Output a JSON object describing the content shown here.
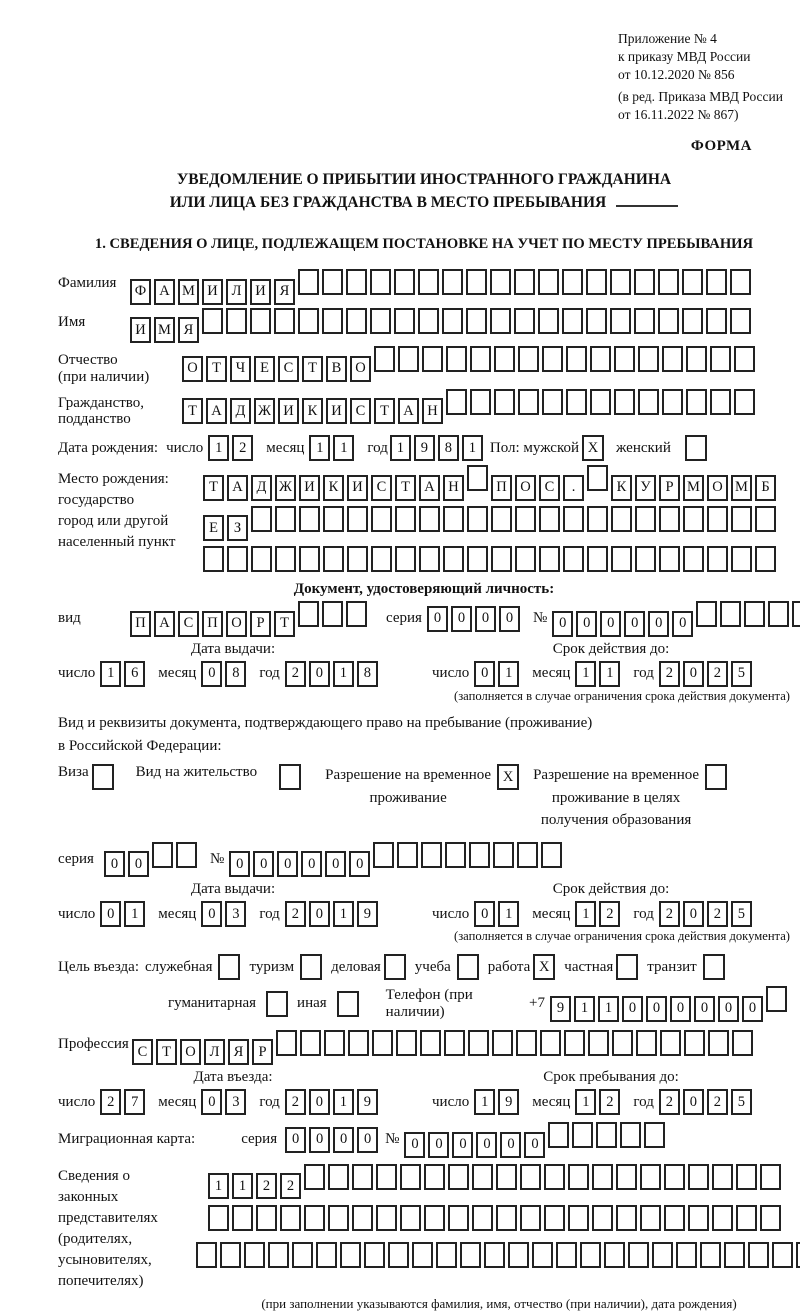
{
  "header": {
    "l1": "Приложение № 4",
    "l2": "к приказу МВД России",
    "l3": "от 10.12.2020 № 856",
    "l4": "(в ред. Приказа МВД России",
    "l5": "от 16.11.2022 № 867)",
    "forma": "ФОРМА"
  },
  "title": {
    "line1": "УВЕДОМЛЕНИЕ О ПРИБЫТИИ ИНОСТРАННОГО ГРАЖДАНИНА",
    "line2": "ИЛИ ЛИЦА БЕЗ ГРАЖДАНСТВА В МЕСТО ПРЕБЫВАНИЯ"
  },
  "section1": {
    "heading": "1. СВЕДЕНИЯ О ЛИЦЕ, ПОДЛЕЖАЩЕМ ПОСТАНОВКЕ НА УЧЕТ ПО МЕСТУ ПРЕБЫВАНИЯ"
  },
  "date_labels": {
    "day": "число",
    "month": "месяц",
    "year": "год"
  },
  "fields": {
    "surname": {
      "label": "Фамилия",
      "cells": {
        "v": "ФАМИЛИЯ",
        "n": 26
      }
    },
    "name": {
      "label": "Имя",
      "cells": {
        "v": "ИМЯ",
        "n": 26
      }
    },
    "patronymic": {
      "label1": "Отчество",
      "label2": "(при наличии)",
      "cells": {
        "v": "ОТЧЕСТВО",
        "n": 24
      }
    },
    "citizenship": {
      "label1": "Гражданство,",
      "label2": "подданство",
      "cells": {
        "v": "ТАДЖИКИСТАН",
        "n": 24
      }
    },
    "profession": {
      "label": "Профессия",
      "cells": {
        "v": "СТОЛЯР",
        "n": 26
      }
    }
  },
  "birth": {
    "label": "Дата рождения:",
    "day": {
      "v": "12",
      "n": 2
    },
    "month": {
      "v": "11",
      "n": 2
    },
    "year": {
      "v": "1981",
      "n": 4
    },
    "sex_label": "Пол: мужской",
    "sex_male": "X",
    "female_label": "женский",
    "sex_female": ""
  },
  "birthplace": {
    "label1": "Место рождения:",
    "label2": "государство",
    "label3": "город или другой",
    "label4": "населенный пункт",
    "row1": {
      "v": "ТАДЖИКИСТАН ПОС. КУРМОМБ",
      "n": 24
    },
    "row2": {
      "v": "ЕЗ",
      "n": 24
    },
    "row3": {
      "v": "",
      "n": 24
    }
  },
  "iddoc": {
    "heading": "Документ, удостоверяющий личность:",
    "vid_label": "вид",
    "vid": {
      "v": "ПАСПОРТ",
      "n": 10
    },
    "series_label": "серия",
    "series": {
      "v": "0000",
      "n": 4
    },
    "num_label": "№",
    "num": {
      "v": "000000",
      "n": 11
    },
    "issue_head": "Дата выдачи:",
    "valid_head": "Срок действия до:",
    "issue": {
      "day": {
        "v": "16",
        "n": 2
      },
      "month": {
        "v": "08",
        "n": 2
      },
      "year": {
        "v": "2018",
        "n": 4
      }
    },
    "valid": {
      "day": {
        "v": "01",
        "n": 2
      },
      "month": {
        "v": "11",
        "n": 2
      },
      "year": {
        "v": "2025",
        "n": 4
      }
    },
    "note": "(заполняется в случае ограничения срока действия документа)"
  },
  "permit": {
    "intro1": "Вид и реквизиты документа, подтверждающего право на пребывание (проживание)",
    "intro2": "в Российской Федерации:",
    "visa_label": "Виза",
    "visa": "",
    "residence_label": "Вид на жительство",
    "residence": "",
    "rvp_label1": "Разрешение на временное",
    "rvp_label2": "проживание",
    "rvp": "X",
    "rvpedu_label1": "Разрешение на временное",
    "rvpedu_label2": "проживание в целях",
    "rvpedu_label3": "получения образования",
    "rvpedu": "",
    "series_label": "серия",
    "series": {
      "v": "00",
      "n": 4
    },
    "num_label": "№",
    "num": {
      "v": "000000",
      "n": 14
    },
    "issue_head": "Дата выдачи:",
    "valid_head": "Срок действия до:",
    "issue": {
      "day": {
        "v": "01",
        "n": 2
      },
      "month": {
        "v": "03",
        "n": 2
      },
      "year": {
        "v": "2019",
        "n": 4
      }
    },
    "valid": {
      "day": {
        "v": "01",
        "n": 2
      },
      "month": {
        "v": "12",
        "n": 2
      },
      "year": {
        "v": "2025",
        "n": 4
      }
    },
    "note": "(заполняется в случае ограничения срока действия документа)"
  },
  "purpose": {
    "label": "Цель въезда:",
    "opt1": "служебная",
    "v1": "",
    "opt2": "туризм",
    "v2": "",
    "opt3": "деловая",
    "v3": "",
    "opt4": "учеба",
    "v4": "",
    "opt5": "работа",
    "v5": "X",
    "opt6": "частная",
    "v6": "",
    "opt7": "транзит",
    "v7": "",
    "opt8": "гуманитарная",
    "v8": "",
    "opt9": "иная",
    "v9": ""
  },
  "phone": {
    "label": "Телефон (при наличии)",
    "prefix": "+7",
    "cells": {
      "v": "911000000",
      "n": 10
    }
  },
  "entry": {
    "head": "Дата въезда:",
    "day": {
      "v": "27",
      "n": 2
    },
    "month": {
      "v": "03",
      "n": 2
    },
    "year": {
      "v": "2019",
      "n": 4
    }
  },
  "stay": {
    "head": "Срок пребывания до:",
    "day": {
      "v": "19",
      "n": 2
    },
    "month": {
      "v": "12",
      "n": 2
    },
    "year": {
      "v": "2025",
      "n": 4
    }
  },
  "migration_card": {
    "label": "Миграционная карта:",
    "series_label": "серия",
    "series": {
      "v": "0000",
      "n": 4
    },
    "num_label": "№",
    "num": {
      "v": "000000",
      "n": 11
    }
  },
  "representatives": {
    "label1": "Сведения о",
    "label2": "законных",
    "label3": "представителях",
    "label4": "(родителях,",
    "label5": "усыновителях,",
    "label6": "попечителях)",
    "row1": {
      "v": "1122",
      "n": 24
    },
    "row2": {
      "v": "",
      "n": 24
    },
    "row3": {
      "v": "",
      "n": 26
    },
    "footnote": "(при заполнении указываются фамилия, имя, отчество (при наличии), дата рождения)"
  }
}
